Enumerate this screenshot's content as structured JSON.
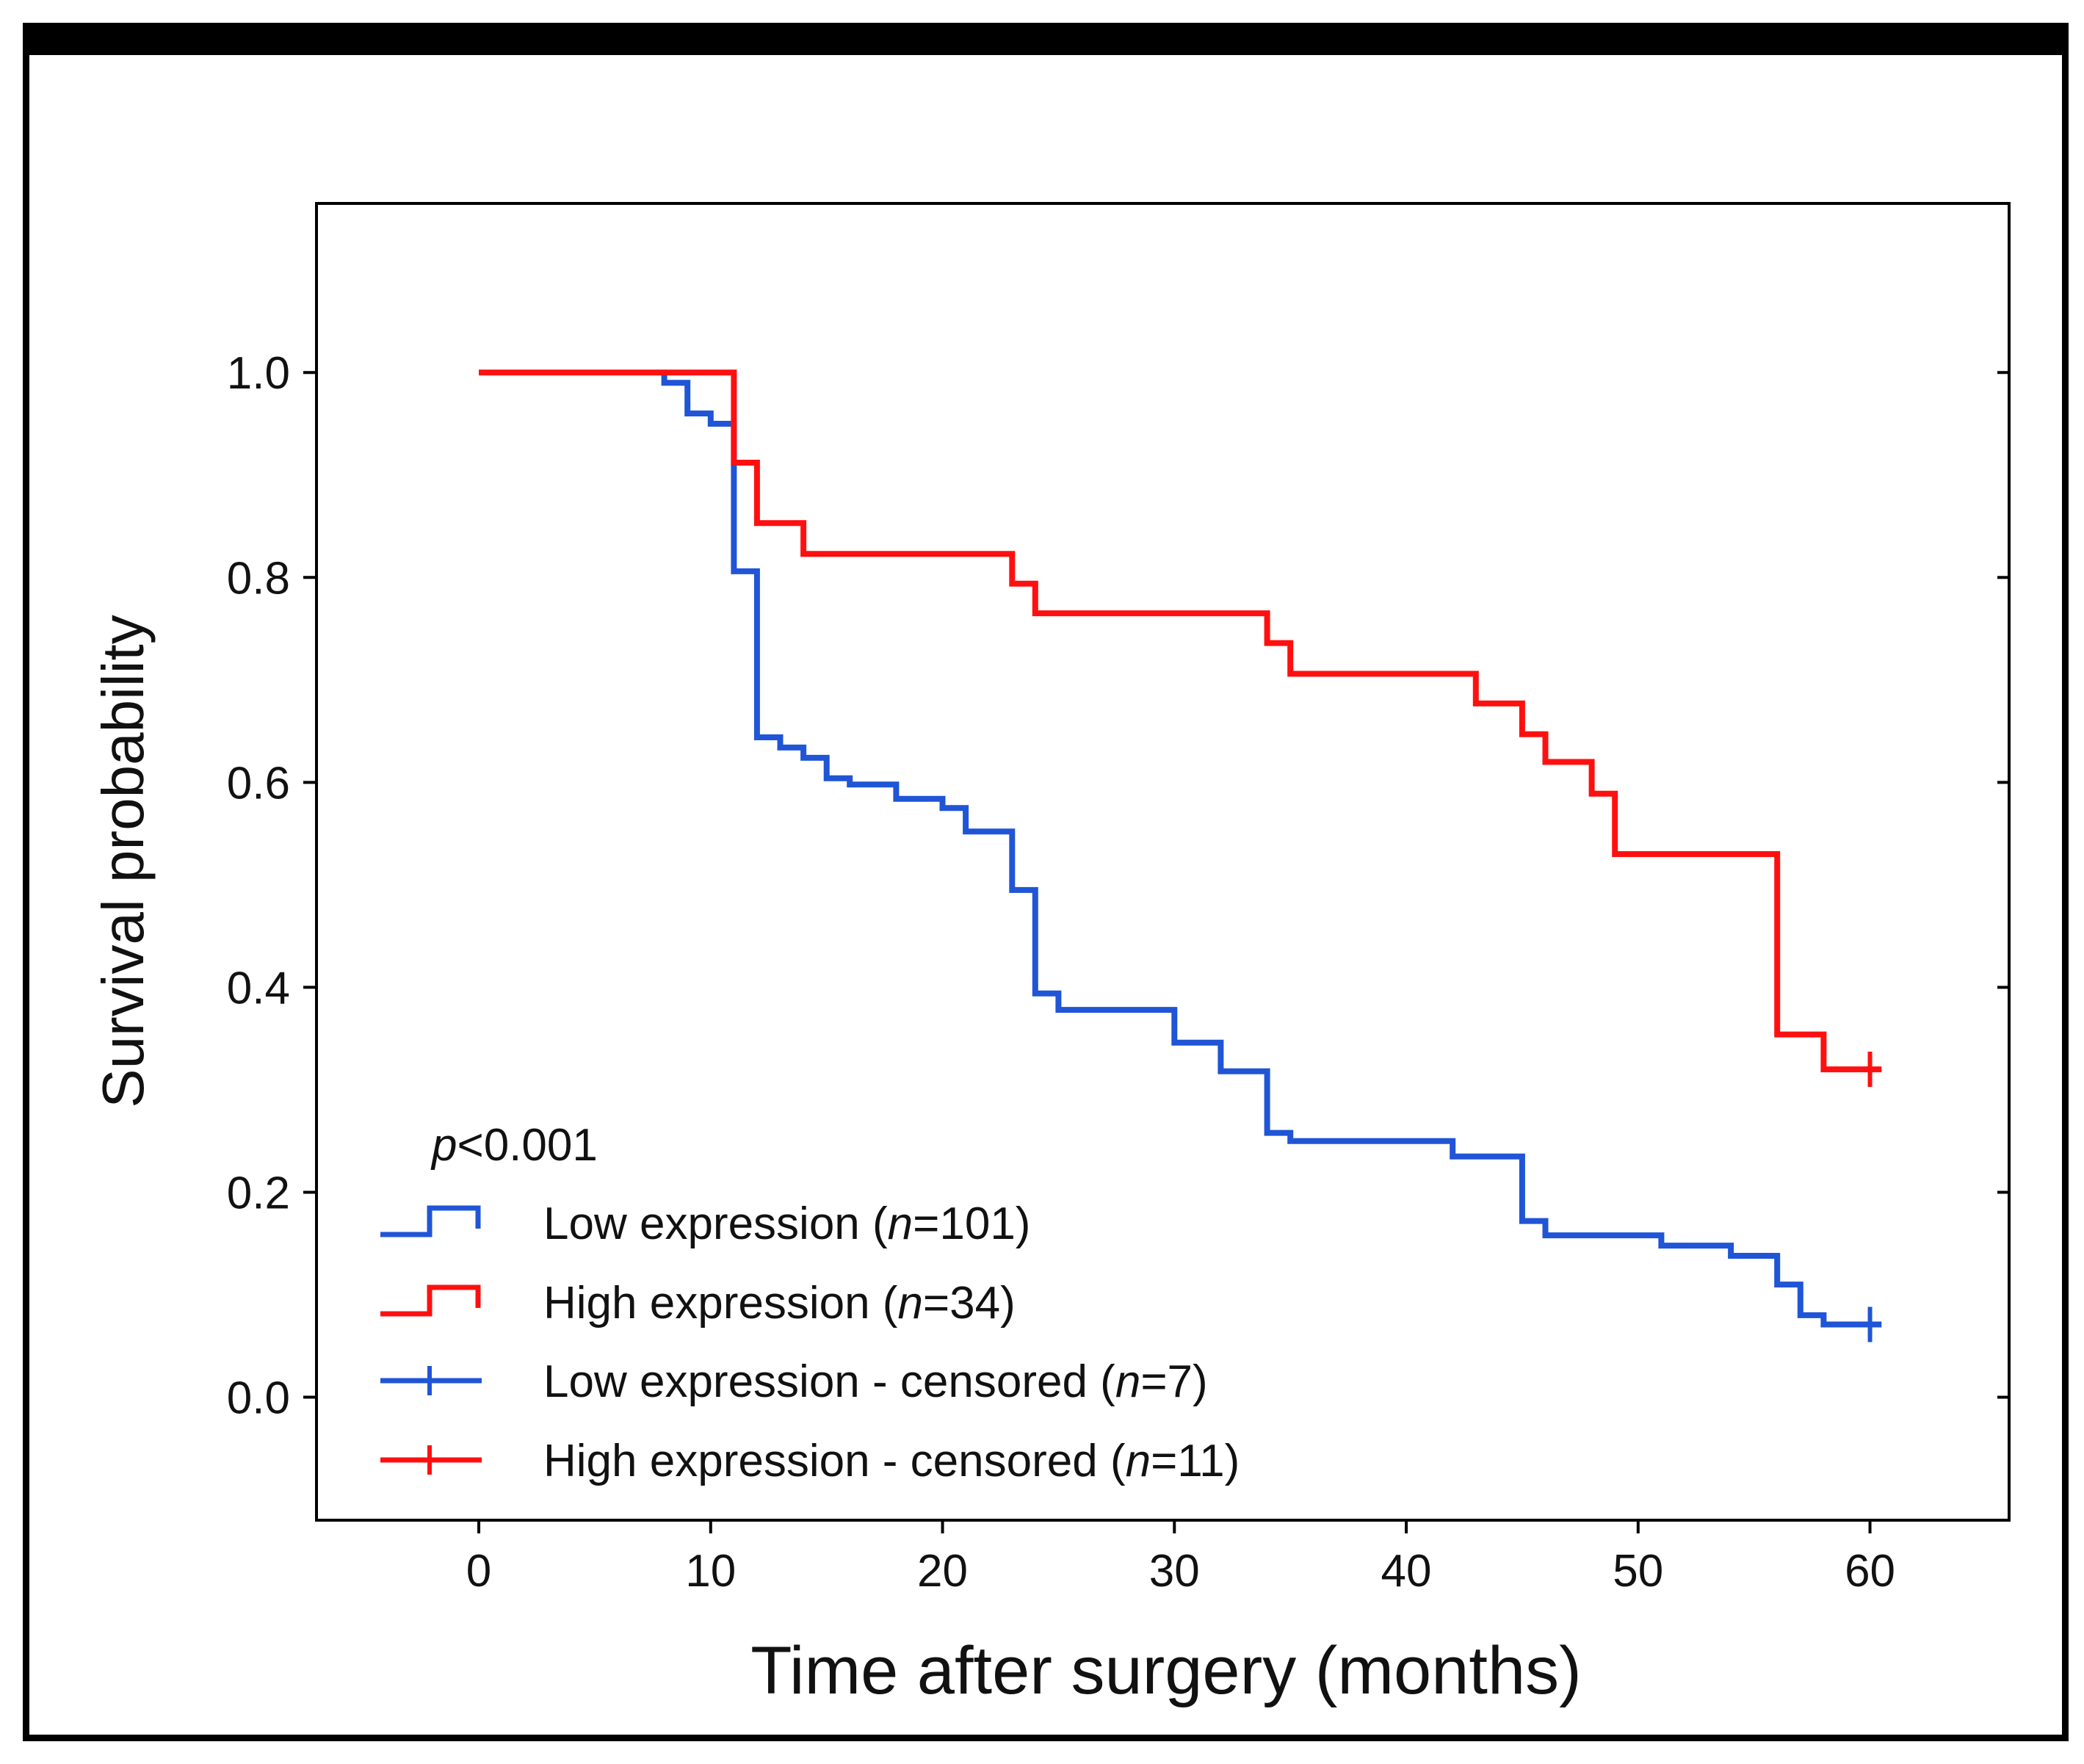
{
  "chart_data": {
    "type": "line",
    "subtype": "kaplan-meier step",
    "title": "",
    "xlabel": "Time after surgery (months)",
    "ylabel": "Survival probability",
    "xlim": [
      -7,
      66
    ],
    "ylim": [
      -0.12,
      1.165
    ],
    "x_ticks": [
      0,
      10,
      20,
      30,
      40,
      50,
      60
    ],
    "y_ticks": [
      0.0,
      0.2,
      0.4,
      0.6,
      0.8,
      1.0
    ],
    "x_tick_labels": [
      "0",
      "10",
      "20",
      "30",
      "40",
      "50",
      "60"
    ],
    "y_tick_labels": [
      "0.0",
      "0.2",
      "0.4",
      "0.6",
      "0.8",
      "1.0"
    ],
    "annotation": {
      "p_label": "p",
      "p_value": "<0.001"
    },
    "legend": [
      {
        "pre": "Low expression (",
        "n_label": "n",
        "post": "=101)",
        "color": "#1f55d6",
        "kind": "step"
      },
      {
        "pre": "High expression (",
        "n_label": "n",
        "post": "=34)",
        "color": "#ff1010",
        "kind": "step"
      },
      {
        "pre": "Low expression - censored (",
        "n_label": "n",
        "post": "=7)",
        "color": "#1f55d6",
        "kind": "censor"
      },
      {
        "pre": "High expression - censored (",
        "n_label": "n",
        "post": "=11)",
        "color": "#ff1010",
        "kind": "censor"
      }
    ],
    "legend_position": "bottom-left",
    "series": [
      {
        "name": "Low expression",
        "color": "#1f55d6",
        "points": [
          [
            8,
            1.0
          ],
          [
            8,
            0.99
          ],
          [
            9,
            0.99
          ],
          [
            9,
            0.96
          ],
          [
            10,
            0.96
          ],
          [
            10,
            0.95
          ],
          [
            11,
            0.95
          ],
          [
            11,
            0.806
          ],
          [
            12,
            0.806
          ],
          [
            12,
            0.644
          ],
          [
            13,
            0.644
          ],
          [
            13,
            0.634
          ],
          [
            14,
            0.634
          ],
          [
            14,
            0.624
          ],
          [
            15,
            0.624
          ],
          [
            15,
            0.604
          ],
          [
            16,
            0.604
          ],
          [
            16,
            0.598
          ],
          [
            18,
            0.598
          ],
          [
            18,
            0.584
          ],
          [
            20,
            0.584
          ],
          [
            20,
            0.575
          ],
          [
            21,
            0.575
          ],
          [
            21,
            0.552
          ],
          [
            23,
            0.552
          ],
          [
            23,
            0.495
          ],
          [
            24,
            0.495
          ],
          [
            24,
            0.394
          ],
          [
            25,
            0.394
          ],
          [
            25,
            0.378
          ],
          [
            30,
            0.378
          ],
          [
            30,
            0.346
          ],
          [
            32,
            0.346
          ],
          [
            32,
            0.318
          ],
          [
            34,
            0.318
          ],
          [
            34,
            0.258
          ],
          [
            35,
            0.258
          ],
          [
            35,
            0.25
          ],
          [
            42,
            0.25
          ],
          [
            42,
            0.235
          ],
          [
            45,
            0.235
          ],
          [
            45,
            0.172
          ],
          [
            46,
            0.172
          ],
          [
            46,
            0.158
          ],
          [
            51,
            0.158
          ],
          [
            51,
            0.148
          ],
          [
            54,
            0.148
          ],
          [
            54,
            0.138
          ],
          [
            56,
            0.138
          ],
          [
            56,
            0.11
          ],
          [
            57,
            0.11
          ],
          [
            57,
            0.08
          ],
          [
            58,
            0.08
          ],
          [
            58,
            0.071
          ],
          [
            60.5,
            0.071
          ]
        ],
        "censored": [
          [
            60,
            0.071
          ]
        ]
      },
      {
        "name": "High expression",
        "color": "#ff1010",
        "points": [
          [
            0,
            1.0
          ],
          [
            11,
            1.0
          ],
          [
            11,
            0.912
          ],
          [
            12,
            0.912
          ],
          [
            12,
            0.853
          ],
          [
            14,
            0.853
          ],
          [
            14,
            0.823
          ],
          [
            23,
            0.823
          ],
          [
            23,
            0.794
          ],
          [
            24,
            0.794
          ],
          [
            24,
            0.765
          ],
          [
            34,
            0.765
          ],
          [
            34,
            0.736
          ],
          [
            35,
            0.736
          ],
          [
            35,
            0.706
          ],
          [
            43,
            0.706
          ],
          [
            43,
            0.677
          ],
          [
            45,
            0.677
          ],
          [
            45,
            0.647
          ],
          [
            46,
            0.647
          ],
          [
            46,
            0.62
          ],
          [
            48,
            0.62
          ],
          [
            48,
            0.589
          ],
          [
            49,
            0.589
          ],
          [
            49,
            0.53
          ],
          [
            56,
            0.53
          ],
          [
            56,
            0.354
          ],
          [
            58,
            0.354
          ],
          [
            58,
            0.32
          ],
          [
            60.5,
            0.32
          ]
        ],
        "censored": [
          [
            60,
            0.32
          ]
        ]
      }
    ]
  }
}
